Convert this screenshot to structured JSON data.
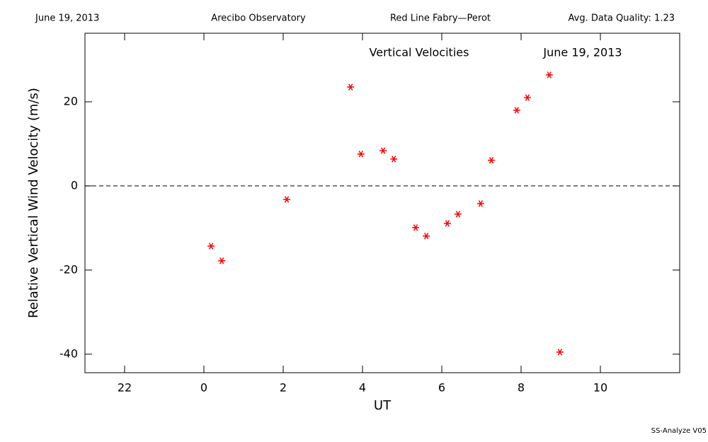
{
  "header": {
    "date": "June 19, 2013",
    "site": "Arecibo Observatory",
    "instrument": "Red Line Fabry—Perot",
    "quality": "Avg. Data Quality: 1.23"
  },
  "footer": "SS-Analyze V05",
  "chart_data": {
    "type": "scatter",
    "title": "Vertical Velocities",
    "subtitle": "June 19, 2013",
    "x_label": "UT",
    "y_label": "Relative Vertical Wind Velocity (m/s)",
    "x": [
      0.18,
      0.45,
      2.09,
      3.7,
      3.96,
      4.52,
      4.79,
      5.34,
      5.61,
      6.14,
      6.41,
      6.98,
      7.25,
      7.89,
      8.16,
      8.71,
      8.98
    ],
    "values": [
      -14.3,
      -17.8,
      -3.2,
      23.5,
      7.6,
      8.4,
      6.4,
      -9.9,
      -11.9,
      -8.9,
      -6.7,
      -4.2,
      6.1,
      18.0,
      21.0,
      26.4,
      -39.5
    ],
    "color": "#ff0000",
    "marker": "asterisk",
    "xlim": [
      -3,
      12
    ],
    "xticks": [
      {
        "value": -2,
        "label": "22"
      },
      0,
      2,
      4,
      6,
      8,
      10
    ],
    "ylim": [
      -44.4,
      36.3
    ],
    "yticks": [
      -40,
      -20,
      0,
      20
    ],
    "reference_line": 0
  }
}
